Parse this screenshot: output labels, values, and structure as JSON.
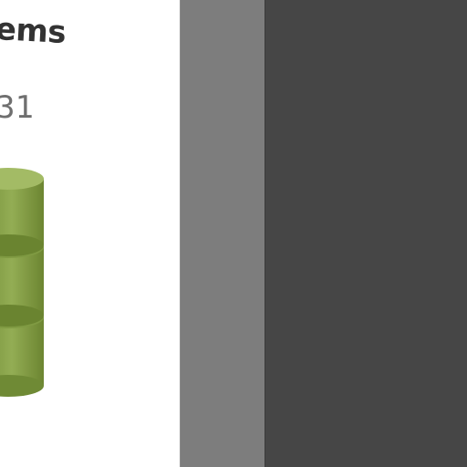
{
  "card": {
    "title": "ems",
    "count": "31",
    "icon": "database-icon",
    "icon_color": "#8fa64e"
  },
  "colors": {
    "card_bg": "#ffffff",
    "strip_bg": "#7d7d7d",
    "pane_bg": "#464646"
  }
}
